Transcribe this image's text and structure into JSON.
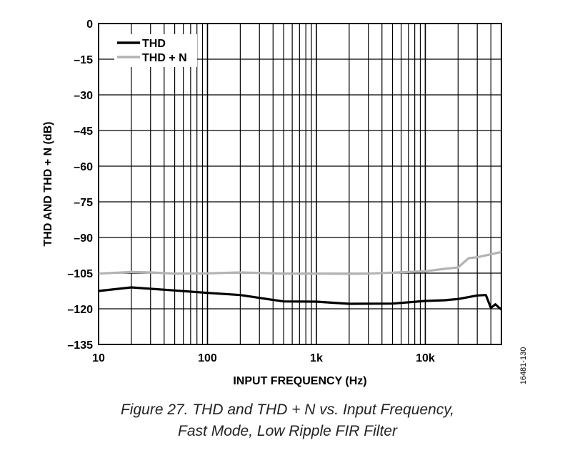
{
  "caption": {
    "line1": "Figure 27. THD and THD + N vs. Input Frequency,",
    "line2": "Fast Mode, Low Ripple FIR Filter"
  },
  "figure_id": "16481-130",
  "chart_data": {
    "type": "line",
    "title": "",
    "xlabel": "INPUT FREQUENCY (Hz)",
    "ylabel": "THD AND THD + N (dB)",
    "xscale": "log",
    "xlim": [
      10,
      50000
    ],
    "ylim": [
      -135,
      0
    ],
    "grid": true,
    "legend_position": "top-left",
    "x_tick_labels": [
      {
        "value": 10,
        "label": "10"
      },
      {
        "value": 100,
        "label": "100"
      },
      {
        "value": 1000,
        "label": "1k"
      },
      {
        "value": 10000,
        "label": "10k"
      }
    ],
    "y_tick_labels": [
      {
        "value": 0,
        "label": "0"
      },
      {
        "value": -15,
        "label": "–15"
      },
      {
        "value": -30,
        "label": "–30"
      },
      {
        "value": -45,
        "label": "–45"
      },
      {
        "value": -60,
        "label": "–60"
      },
      {
        "value": -75,
        "label": "–75"
      },
      {
        "value": -90,
        "label": "–90"
      },
      {
        "value": -105,
        "label": "–105"
      },
      {
        "value": -120,
        "label": "–120"
      },
      {
        "value": -135,
        "label": "–135"
      }
    ],
    "series": [
      {
        "name": "THD",
        "color": "#000000",
        "x": [
          10,
          20,
          50,
          100,
          200,
          500,
          1000,
          2000,
          5000,
          10000,
          15000,
          20000,
          30000,
          36000,
          40000,
          44000,
          48000,
          50000
        ],
        "y": [
          -112.5,
          -111,
          -112.3,
          -113.3,
          -114.2,
          -116.9,
          -117,
          -117.9,
          -117.8,
          -116.7,
          -116.4,
          -115.9,
          -114.4,
          -114.2,
          -119.6,
          -118.1,
          -119.7,
          -120.3
        ]
      },
      {
        "name": "THD + N",
        "color": "#b3b3b3",
        "x": [
          10,
          20,
          30,
          50,
          100,
          200,
          500,
          1000,
          2000,
          3000,
          5000,
          10000,
          15000,
          20000,
          25000,
          30000,
          50000
        ],
        "y": [
          -105.2,
          -104.5,
          -104.7,
          -105.2,
          -105.1,
          -104.7,
          -105.2,
          -105.2,
          -105.3,
          -105.2,
          -104.8,
          -104.2,
          -103.2,
          -102.6,
          -98.7,
          -98.3,
          -96.1
        ]
      }
    ]
  }
}
